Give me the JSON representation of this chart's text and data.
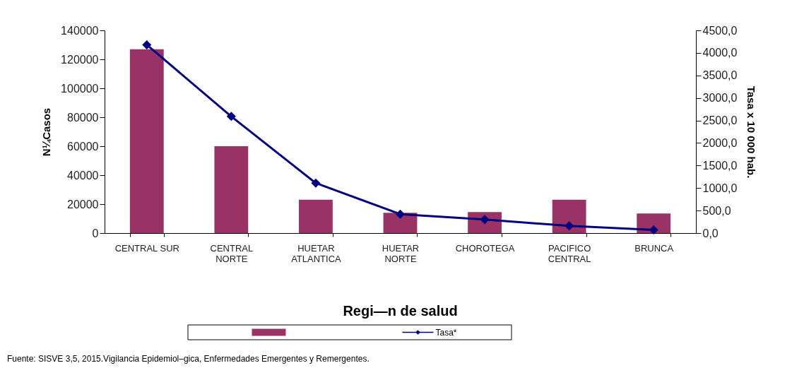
{
  "chart_data": {
    "type": "bar",
    "xlabel": "Regi—n de salud",
    "ylabel": "N¼Casos",
    "y2label": "Tasa x 10 000 hab.",
    "categories": [
      "CENTRAL SUR",
      "CENTRAL NORTE",
      "HUETAR ATLANTICA",
      "HUETAR NORTE",
      "CHOROTEGA",
      "PACIFICO CENTRAL",
      "BRUNCA"
    ],
    "series": [
      {
        "color": "#993366",
        "values": [
          127000,
          60000,
          23000,
          14000,
          14500,
          23000,
          13500
        ]
      },
      {
        "type": "line",
        "name": "Tasa*",
        "axis": "y2",
        "color": "#000080",
        "marker": "diamond",
        "values": [
          4180,
          2590,
          1110,
          420,
          300,
          160,
          70
        ]
      }
    ],
    "ylim": [
      0,
      140000
    ],
    "yticks": [
      0,
      20000,
      40000,
      60000,
      80000,
      100000,
      120000,
      140000
    ],
    "y2lim": [
      0,
      4500
    ],
    "y2ticks": [
      {
        "value": 0,
        "label": "0,0"
      },
      {
        "value": 500,
        "label": "500,0"
      },
      {
        "value": 1000,
        "label": "1000,0"
      },
      {
        "value": 1500,
        "label": "1500,0"
      },
      {
        "value": 2000,
        "label": "2000,0"
      },
      {
        "value": 2500,
        "label": "2500,0"
      },
      {
        "value": 3000,
        "label": "3000,0"
      },
      {
        "value": 3500,
        "label": "3500,0"
      },
      {
        "value": 4000,
        "label": "4000,0"
      },
      {
        "value": 4500,
        "label": "4500,0"
      }
    ],
    "grid": false,
    "legend": "bottom",
    "annotations": [
      "Fuente: SISVE 3,5, 2015.Vigilancia Epidemiol–gica, Enfermedades  Emergentes y  Remergentes."
    ]
  }
}
